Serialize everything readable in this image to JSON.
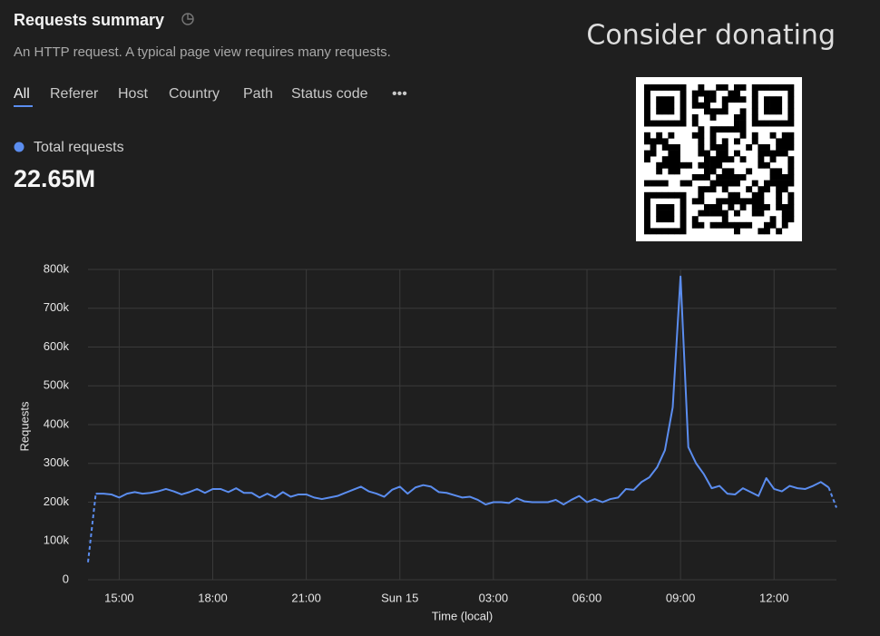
{
  "header": {
    "title": "Requests summary",
    "subtitle": "An HTTP request. A typical page view requires many requests."
  },
  "tabs": [
    "All",
    "Referer",
    "Host",
    "Country",
    "Path",
    "Status code",
    "•••"
  ],
  "summary": {
    "value": "22.65M"
  },
  "donate": {
    "text": "Consider donating"
  },
  "chart_data": {
    "type": "line",
    "xlabel": "Time (local)",
    "ylabel": "Requests",
    "x": [
      14,
      14.25,
      14.5,
      14.75,
      15,
      15.25,
      15.5,
      15.75,
      16,
      16.25,
      16.5,
      16.75,
      17,
      17.25,
      17.5,
      17.75,
      18,
      18.25,
      18.5,
      18.75,
      19,
      19.25,
      19.5,
      19.75,
      20,
      20.25,
      20.5,
      20.75,
      21,
      21.25,
      21.5,
      21.75,
      22,
      22.25,
      22.5,
      22.75,
      23,
      23.25,
      23.5,
      23.75,
      24,
      24.25,
      24.5,
      24.75,
      25,
      25.25,
      25.5,
      25.75,
      26,
      26.25,
      26.5,
      26.75,
      27,
      27.25,
      27.5,
      27.75,
      28,
      28.25,
      28.5,
      28.75,
      29,
      29.25,
      29.5,
      29.75,
      30,
      30.25,
      30.5,
      30.75,
      31,
      31.25,
      31.5,
      31.75,
      32,
      32.25,
      32.5,
      32.75,
      33,
      33.25,
      33.5,
      33.75,
      34,
      34.25,
      34.5,
      34.75,
      35,
      35.25,
      35.5,
      35.75,
      36,
      36.25,
      36.5,
      36.75,
      37,
      37.25,
      37.5,
      37.75,
      38
    ],
    "series": [
      {
        "name": "Total requests",
        "color": "#5b8def",
        "values": [
          45000,
          222000,
          222000,
          220000,
          212000,
          222000,
          226000,
          222000,
          224000,
          228000,
          234000,
          228000,
          220000,
          226000,
          234000,
          224000,
          234000,
          234000,
          226000,
          236000,
          224000,
          224000,
          212000,
          222000,
          212000,
          226000,
          214000,
          220000,
          220000,
          212000,
          208000,
          212000,
          216000,
          224000,
          232000,
          240000,
          228000,
          222000,
          214000,
          232000,
          240000,
          222000,
          238000,
          244000,
          240000,
          226000,
          224000,
          218000,
          212000,
          214000,
          206000,
          194000,
          200000,
          200000,
          198000,
          210000,
          202000,
          200000,
          200000,
          200000,
          206000,
          194000,
          206000,
          216000,
          200000,
          208000,
          200000,
          208000,
          212000,
          234000,
          232000,
          252000,
          264000,
          290000,
          334000,
          445000,
          782000,
          342000,
          300000,
          272000,
          236000,
          242000,
          222000,
          220000,
          236000,
          226000,
          216000,
          262000,
          234000,
          228000,
          242000,
          236000,
          234000,
          242000,
          252000,
          238000,
          186000
        ]
      }
    ],
    "xlim": [
      14,
      38
    ],
    "ylim": [
      0,
      800000
    ],
    "xticks": [
      {
        "value": 15,
        "label": "15:00"
      },
      {
        "value": 18,
        "label": "18:00"
      },
      {
        "value": 21,
        "label": "21:00"
      },
      {
        "value": 24,
        "label": "Sun 15"
      },
      {
        "value": 27,
        "label": "03:00"
      },
      {
        "value": 30,
        "label": "06:00"
      },
      {
        "value": 33,
        "label": "09:00"
      },
      {
        "value": 36,
        "label": "12:00"
      }
    ],
    "yticks": [
      0,
      {
        "value": 100000,
        "label": "100k"
      },
      {
        "value": 200000,
        "label": "200k"
      },
      {
        "value": 300000,
        "label": "300k"
      },
      {
        "value": 400000,
        "label": "400k"
      },
      {
        "value": 500000,
        "label": "500k"
      },
      {
        "value": 600000,
        "label": "600k"
      },
      {
        "value": 700000,
        "label": "700k"
      },
      {
        "value": 800000,
        "label": "800k"
      }
    ],
    "grid": true
  }
}
